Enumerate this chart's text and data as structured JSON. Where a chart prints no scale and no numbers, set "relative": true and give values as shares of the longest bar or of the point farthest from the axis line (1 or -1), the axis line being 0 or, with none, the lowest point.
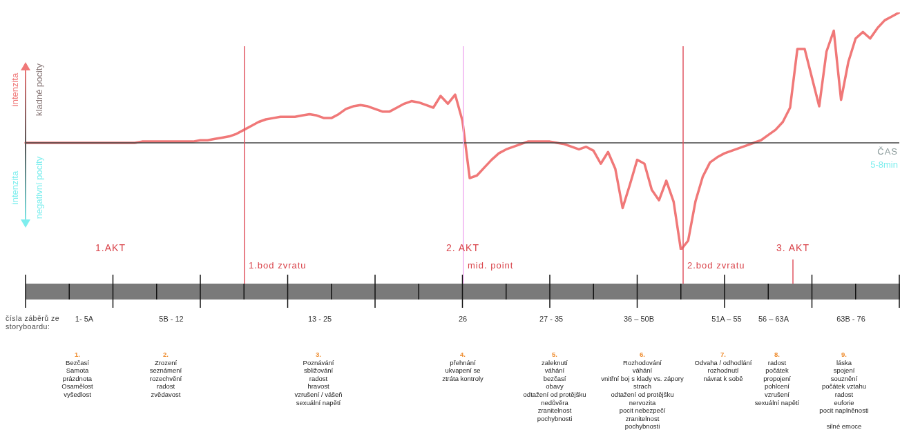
{
  "chart_data": {
    "type": "line",
    "relative": true,
    "xlabel": "ČAS",
    "categories": [
      null,
      null,
      null,
      null,
      null,
      null,
      null,
      null,
      null,
      null,
      null,
      null,
      null,
      null,
      null,
      null,
      null,
      null,
      null,
      null,
      null,
      null,
      null,
      null,
      null,
      null,
      null,
      null,
      null,
      null,
      null,
      null,
      null,
      null,
      null,
      null,
      null,
      null,
      null,
      null,
      null,
      null,
      null,
      null,
      null,
      null,
      null,
      null,
      null,
      null,
      null,
      null,
      null,
      null,
      null,
      null,
      null,
      null,
      null,
      null,
      null,
      null,
      null,
      null,
      null,
      null,
      null,
      null,
      null,
      null,
      null,
      null,
      null,
      null,
      null,
      null,
      null,
      null,
      null,
      null,
      null,
      null,
      null,
      null,
      null,
      null,
      null,
      null,
      null,
      null,
      null,
      null,
      null,
      null,
      null,
      null,
      null,
      null,
      null,
      null,
      null,
      null,
      null,
      null,
      null,
      null,
      null,
      null,
      null,
      null,
      null,
      null,
      null,
      null,
      null,
      null,
      null,
      null,
      null,
      null,
      null
    ],
    "series": [
      {
        "color": "#f07878",
        "values": [
          0,
          0,
          0,
          0,
          0,
          0,
          0,
          0,
          0,
          0,
          0,
          0,
          0,
          0,
          0,
          0,
          0.01,
          0.01,
          0.01,
          0.01,
          0.01,
          0.01,
          0.01,
          0.01,
          0.02,
          0.02,
          0.03,
          0.04,
          0.05,
          0.07,
          0.1,
          0.13,
          0.16,
          0.18,
          0.19,
          0.2,
          0.2,
          0.2,
          0.21,
          0.22,
          0.21,
          0.19,
          0.19,
          0.22,
          0.26,
          0.28,
          0.29,
          0.28,
          0.26,
          0.24,
          0.24,
          0.27,
          0.3,
          0.32,
          0.31,
          0.29,
          0.27,
          0.36,
          0.3,
          0.37,
          0.17,
          -0.27,
          -0.25,
          -0.19,
          -0.13,
          -0.08,
          -0.05,
          -0.03,
          -0.01,
          0.01,
          0.01,
          0.01,
          0.01,
          0,
          -0.01,
          -0.03,
          -0.05,
          -0.03,
          -0.06,
          -0.16,
          -0.07,
          -0.2,
          -0.5,
          -0.32,
          -0.13,
          -0.16,
          -0.36,
          -0.44,
          -0.29,
          -0.45,
          -0.82,
          -0.75,
          -0.45,
          -0.26,
          -0.15,
          -0.11,
          -0.08,
          -0.06,
          -0.04,
          -0.02,
          0,
          0.02,
          0.06,
          0.1,
          0.16,
          0.27,
          0.72,
          0.72,
          0.5,
          0.28,
          0.7,
          0.86,
          0.33,
          0.62,
          0.8,
          0.85,
          0.8,
          0.88,
          0.94,
          0.97,
          1.0
        ]
      }
    ],
    "annotations": [
      "intenzita",
      "kladné pocity",
      "intenzita",
      "negativní pocity",
      "5-8min",
      "čísla záběrů ze storyboardu:",
      "1.AKT",
      "2. AKT",
      "3. AKT",
      "1- 5A",
      "5B - 12",
      "13 - 25",
      "26",
      "27 - 35",
      "36 – 50B",
      "51A – 55",
      "56 – 63A",
      "63B - 76",
      "1.\nBezčasí\nSamota\nprázdnota\nOsamělost\nvyšedlost",
      "2.\nZrození\nseznámení\nrozechvění\nradost\nzvědavost",
      "3.\nPoznávání\nsbližování\nradost\nhravost\nvzrušení / vášeň\nsexuální napětí",
      "4.\npřehnání\nukvapení se\nztráta kontroly",
      "5.\nzaleknutí\nváhání\nbezčasí\nobavy\nodtažení od protějšku\nnedůvěra\nzranitelnost\npochybnosti",
      "6.\nRozhodování\nváhání\nvnitřní boj s klady vs. zápory\nstrach\nodtažení od protějšku\nnervozita\npocit nebezpečí\nzranitelnost\npochybnosti",
      "7.\nOdvaha / odhodlání\nrozhodnutí\nnávrat k sobě",
      "8.\nradost\npočátek\npropojení\npohlcení\nvzrušení\nsexuální napětí",
      "9.\nláska\nspojení\nsouznění\npočátek vztahu\nradost\neuforie\npocit naplněnosti\n\nsilné emoce",
      "1.bod zvratu",
      "mid. point",
      "2.bod zvratu"
    ]
  }
}
